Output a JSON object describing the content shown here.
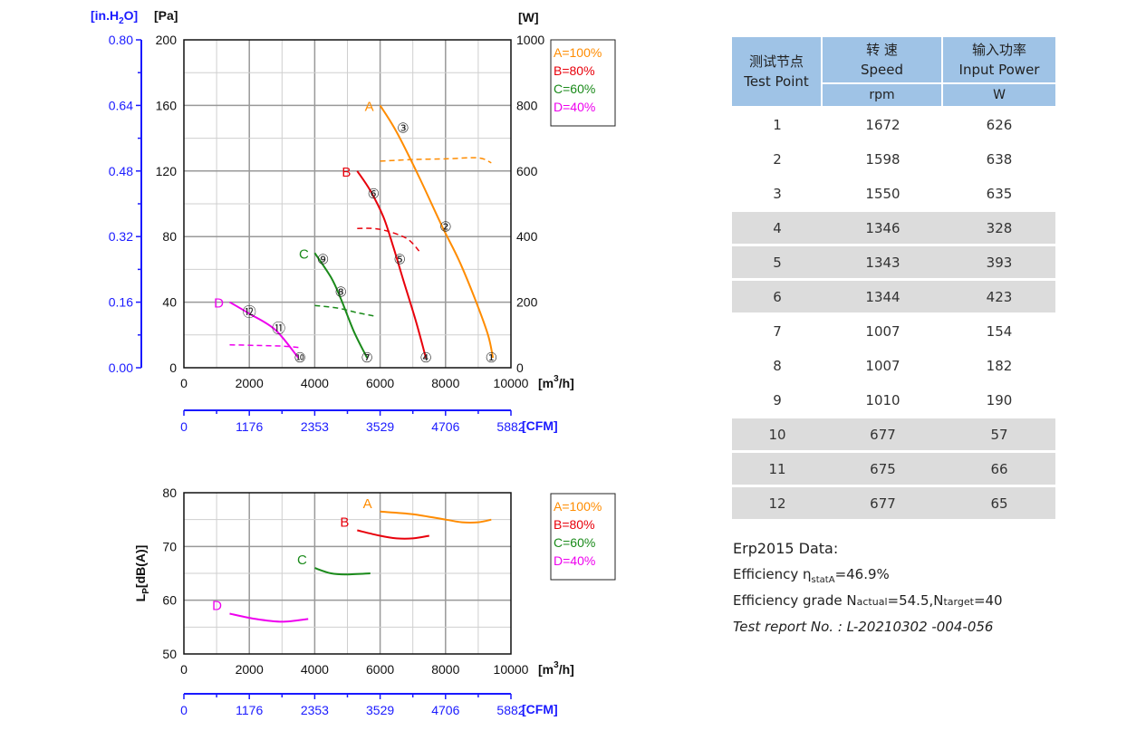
{
  "chart_data": [
    {
      "type": "line",
      "title": "",
      "ylabel_left_outer": "[in.H2O]",
      "ylabel_left": "[Pa]",
      "ylabel_right": "[W]",
      "xlabel": "[m3/h]",
      "xlabel_secondary": "[CFM]",
      "xlim": [
        0,
        10000
      ],
      "ylim": [
        0,
        200
      ],
      "ylim_right": [
        0,
        1000
      ],
      "x_ticks": [
        "0",
        "2000",
        "4000",
        "6000",
        "8000",
        "10000"
      ],
      "y_ticks": [
        "0",
        "40",
        "80",
        "120",
        "160",
        "200"
      ],
      "y_ticks_outer": [
        "0.00",
        "0.16",
        "0.32",
        "0.48",
        "0.64",
        "0.80"
      ],
      "y_ticks_right": [
        "0",
        "200",
        "400",
        "600",
        "800",
        "1000"
      ],
      "cfm_ticks": [
        "0",
        "1176",
        "2353",
        "3529",
        "4706",
        "5882"
      ],
      "grid": true,
      "legend_position": "top-right",
      "legend": [
        {
          "label": "A=100%",
          "color": "#ff8c00"
        },
        {
          "label": "B=80%",
          "color": "#e8000b"
        },
        {
          "label": "C=60%",
          "color": "#1a8a1a"
        },
        {
          "label": "D=40%",
          "color": "#ee00ee"
        }
      ],
      "series": [
        {
          "name": "A",
          "color": "#ff8c00",
          "pressure": [
            [
              6000,
              160
            ],
            [
              6500,
              144
            ],
            [
              7200,
              116
            ],
            [
              7900,
              86
            ],
            [
              8400,
              66
            ],
            [
              8900,
              42
            ],
            [
              9300,
              20
            ],
            [
              9450,
              6
            ]
          ],
          "power": [
            [
              6000,
              630
            ],
            [
              7000,
              635
            ],
            [
              8000,
              637
            ],
            [
              9000,
              640
            ],
            [
              9400,
              625
            ]
          ]
        },
        {
          "name": "B",
          "color": "#e8000b",
          "pressure": [
            [
              5300,
              120
            ],
            [
              5700,
              108
            ],
            [
              6100,
              92
            ],
            [
              6400,
              74
            ],
            [
              6700,
              54
            ],
            [
              7100,
              28
            ],
            [
              7400,
              6
            ]
          ],
          "power": [
            [
              5300,
              425
            ],
            [
              6000,
              422
            ],
            [
              6800,
              395
            ],
            [
              7200,
              355
            ]
          ]
        },
        {
          "name": "C",
          "color": "#1a8a1a",
          "pressure": [
            [
              4000,
              70
            ],
            [
              4500,
              55
            ],
            [
              4800,
              42
            ],
            [
              5200,
              22
            ],
            [
              5600,
              6
            ]
          ],
          "power": [
            [
              4000,
              190
            ],
            [
              4700,
              182
            ],
            [
              5300,
              168
            ],
            [
              5800,
              158
            ]
          ]
        },
        {
          "name": "D",
          "color": "#ee00ee",
          "pressure": [
            [
              1400,
              40
            ],
            [
              2000,
              33
            ],
            [
              2800,
              23
            ],
            [
              3500,
              6
            ]
          ],
          "power": [
            [
              1400,
              70
            ],
            [
              2200,
              68
            ],
            [
              3000,
              66
            ],
            [
              3500,
              62
            ]
          ]
        }
      ],
      "test_points": [
        {
          "label": "①",
          "x": 9400,
          "y": 6
        },
        {
          "label": "②",
          "x": 8000,
          "y": 86
        },
        {
          "label": "③",
          "x": 6700,
          "y": 146
        },
        {
          "label": "④",
          "x": 7400,
          "y": 6
        },
        {
          "label": "⑤",
          "x": 6600,
          "y": 66
        },
        {
          "label": "⑥",
          "x": 5800,
          "y": 106
        },
        {
          "label": "⑦",
          "x": 5600,
          "y": 6
        },
        {
          "label": "⑧",
          "x": 4800,
          "y": 46
        },
        {
          "label": "⑨",
          "x": 4250,
          "y": 66
        },
        {
          "label": "⑩",
          "x": 3550,
          "y": 6
        },
        {
          "label": "⑪",
          "x": 2900,
          "y": 24
        },
        {
          "label": "⑫",
          "x": 2000,
          "y": 34
        }
      ]
    },
    {
      "type": "line",
      "title": "",
      "ylabel": "LP[dB(A)]",
      "xlabel": "[m3/h]",
      "xlabel_secondary": "[CFM]",
      "xlim": [
        0,
        10000
      ],
      "ylim": [
        50,
        80
      ],
      "x_ticks": [
        "0",
        "2000",
        "4000",
        "6000",
        "8000",
        "10000"
      ],
      "y_ticks": [
        "50",
        "60",
        "70",
        "80"
      ],
      "cfm_ticks": [
        "0",
        "1176",
        "2353",
        "3529",
        "4706",
        "5882"
      ],
      "grid": true,
      "legend_position": "top-right",
      "legend": [
        {
          "label": "A=100%",
          "color": "#ff8c00"
        },
        {
          "label": "B=80%",
          "color": "#e8000b"
        },
        {
          "label": "C=60%",
          "color": "#1a8a1a"
        },
        {
          "label": "D=40%",
          "color": "#ee00ee"
        }
      ],
      "series": [
        {
          "name": "A",
          "color": "#ff8c00",
          "points": [
            [
              6000,
              76.5
            ],
            [
              7000,
              76
            ],
            [
              8000,
              75
            ],
            [
              8500,
              74.5
            ],
            [
              9000,
              74.5
            ],
            [
              9400,
              75
            ]
          ]
        },
        {
          "name": "B",
          "color": "#e8000b",
          "points": [
            [
              5300,
              73
            ],
            [
              6000,
              72
            ],
            [
              6500,
              71.5
            ],
            [
              7000,
              71.5
            ],
            [
              7500,
              72
            ]
          ]
        },
        {
          "name": "C",
          "color": "#1a8a1a",
          "points": [
            [
              4000,
              66
            ],
            [
              4500,
              65
            ],
            [
              5000,
              64.8
            ],
            [
              5700,
              65
            ]
          ]
        },
        {
          "name": "D",
          "color": "#ee00ee",
          "points": [
            [
              1400,
              57.5
            ],
            [
              2200,
              56.5
            ],
            [
              3000,
              56
            ],
            [
              3800,
              56.5
            ]
          ]
        }
      ]
    }
  ],
  "table": {
    "header": {
      "col1": [
        "测试节点",
        "Test Point"
      ],
      "col2": [
        "转 速",
        "Speed"
      ],
      "col3": [
        "输入功率",
        "Input Power"
      ],
      "unit2": "rpm",
      "unit3": "W"
    },
    "rows": [
      {
        "point": "1",
        "speed": "1672",
        "power": "626"
      },
      {
        "point": "2",
        "speed": "1598",
        "power": "638"
      },
      {
        "point": "3",
        "speed": "1550",
        "power": "635"
      },
      {
        "point": "4",
        "speed": "1346",
        "power": "328"
      },
      {
        "point": "5",
        "speed": "1343",
        "power": "393"
      },
      {
        "point": "6",
        "speed": "1344",
        "power": "423"
      },
      {
        "point": "7",
        "speed": "1007",
        "power": "154"
      },
      {
        "point": "8",
        "speed": "1007",
        "power": "182"
      },
      {
        "point": "9",
        "speed": "1010",
        "power": "190"
      },
      {
        "point": "10",
        "speed": "677",
        "power": "57"
      },
      {
        "point": "11",
        "speed": "675",
        "power": "66"
      },
      {
        "point": "12",
        "speed": "677",
        "power": "65"
      }
    ]
  },
  "notes": {
    "erp": "Erp2015  Data:",
    "eff_prefix": "Efficiency η",
    "eff_sub": "statA",
    "eff_value": "=46.9%",
    "grade_prefix": "Efficiency grade  N",
    "grade_sub1": "actual",
    "grade_mid": "=54.5,N",
    "grade_sub2": "target",
    "grade_end": "=40",
    "report": "Test report No.  : L-20210302 -004-056"
  }
}
